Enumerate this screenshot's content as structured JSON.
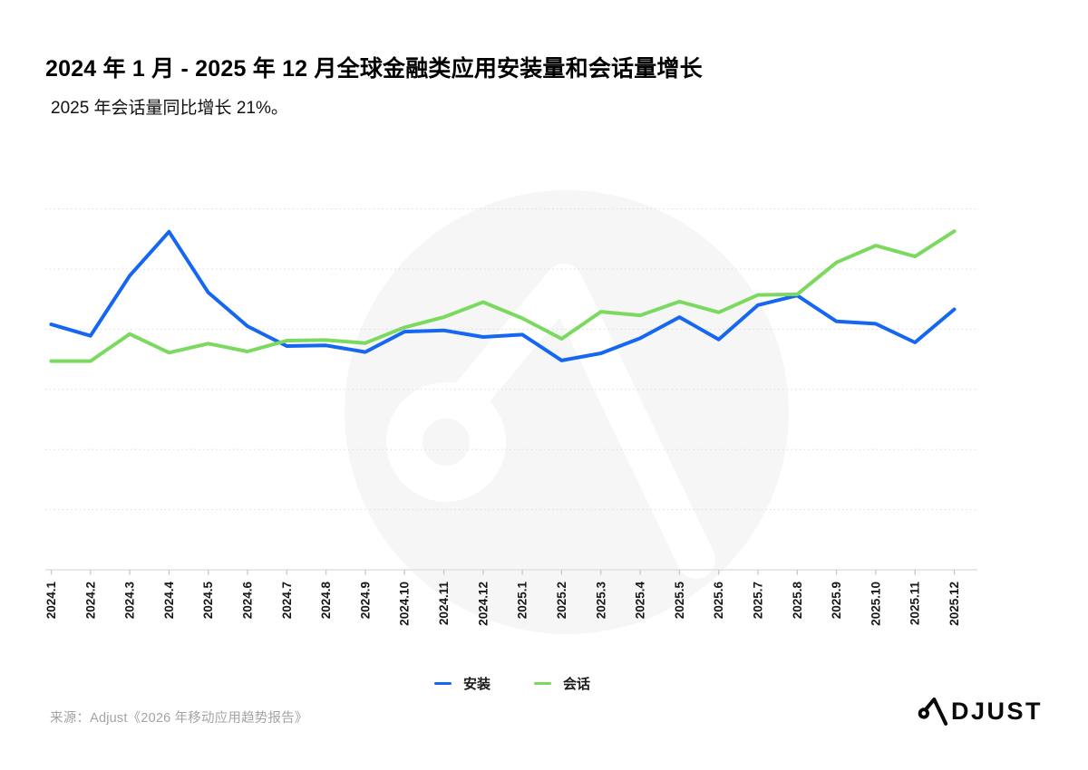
{
  "header": {
    "title": "2024 年 1 月 - 2025 年 12 月全球金融类应用安装量和会话量增长",
    "subtitle": "2025 年会话量同比增长 21%。"
  },
  "chart_data": {
    "type": "line",
    "title": "2024 年 1 月 - 2025 年 12 月全球金融类应用安装量和会话量增长",
    "x": [
      "2024.1",
      "2024.2",
      "2024.3",
      "2024.4",
      "2024.5",
      "2024.6",
      "2024.7",
      "2024.8",
      "2024.9",
      "2024.10",
      "2024.11",
      "2024.12",
      "2025.1",
      "2025.2",
      "2025.3",
      "2025.4",
      "2025.5",
      "2025.6",
      "2025.7",
      "2025.8",
      "2025.9",
      "2025.10",
      "2025.11",
      "2025.12"
    ],
    "series": [
      {
        "name": "安装",
        "color": "#1567f2",
        "values": [
          40.8,
          38.9,
          48.9,
          56.2,
          46.1,
          40.5,
          37.2,
          37.3,
          36.2,
          39.6,
          39.8,
          38.7,
          39.1,
          34.8,
          36.0,
          38.5,
          42.0,
          38.3,
          44.0,
          45.6,
          41.3,
          40.9,
          37.8,
          43.3
        ]
      },
      {
        "name": "会话",
        "color": "#7cd95f",
        "values": [
          34.7,
          34.7,
          39.2,
          36.1,
          37.6,
          36.3,
          38.1,
          38.2,
          37.7,
          40.3,
          42.0,
          44.5,
          41.8,
          38.4,
          42.9,
          42.3,
          44.6,
          42.8,
          45.7,
          45.8,
          51.1,
          53.9,
          52.1,
          56.3
        ]
      }
    ],
    "xlabel": "",
    "ylabel": "",
    "ylim": [
      0,
      65
    ],
    "y_axis_visible": false,
    "y_scale_note": "relative index, axis unlabeled",
    "gridline_values": [
      10,
      20,
      30,
      40,
      50,
      60
    ],
    "grid": "horizontal-dotted",
    "legend_position": "bottom"
  },
  "legend": {
    "items": [
      {
        "label": "安装",
        "color": "#1567f2"
      },
      {
        "label": "会话",
        "color": "#7cd95f"
      }
    ]
  },
  "footer": {
    "source": "来源：Adjust《2026 年移动应用趋势报告》",
    "logo_text": "ADJUST"
  },
  "colors": {
    "installs_line": "#1567f2",
    "sessions_line": "#7cd95f",
    "gridline": "#dcdcdc",
    "axis": "#e0e0e0",
    "tick": "#c9c9c9",
    "axis_label": "#161616",
    "watermark": "#f6f6f7"
  }
}
